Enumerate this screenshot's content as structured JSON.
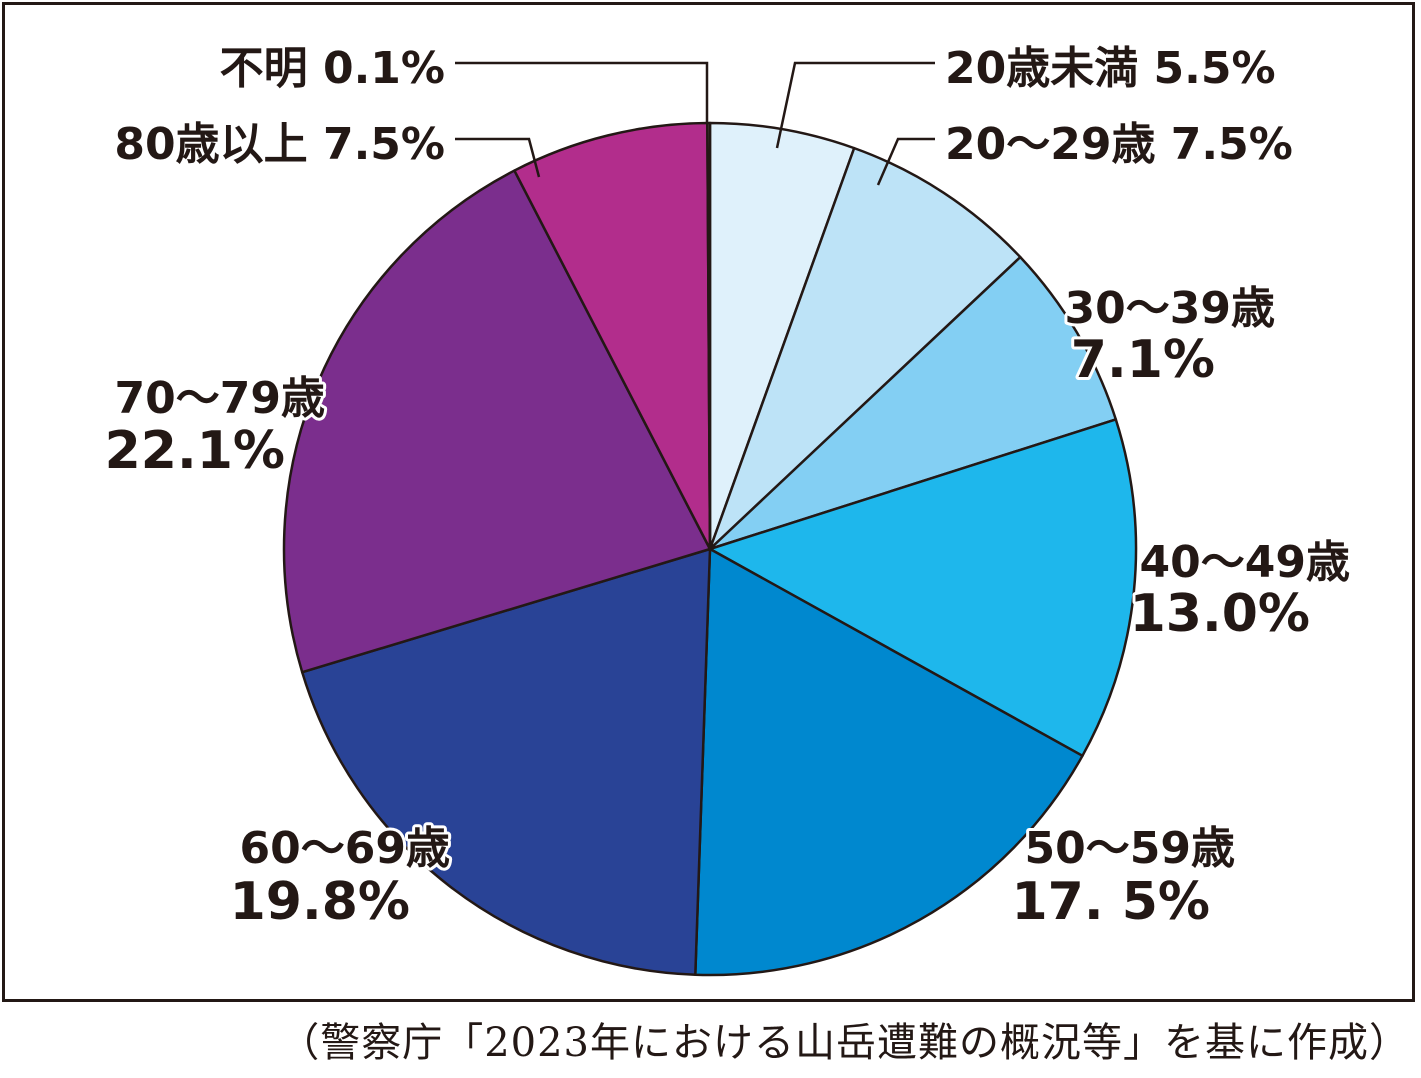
{
  "chart_data": {
    "type": "pie",
    "start_at": "12 o'clock",
    "direction": "clockwise",
    "slices": [
      {
        "label": "20歳未満",
        "value": 5.5,
        "value_label": "5.5%",
        "color": "#dff1fb"
      },
      {
        "label": "20～29歳",
        "value": 7.5,
        "value_label": "7.5%",
        "color": "#bde3f7"
      },
      {
        "label": "30～39歳",
        "value": 7.1,
        "value_label": "7.1%",
        "color": "#83cff3"
      },
      {
        "label": "40～49歳",
        "value": 13.0,
        "value_label": "13.0%",
        "color": "#1eb7ec"
      },
      {
        "label": "50～59歳",
        "value": 17.5,
        "value_label": "17. 5%",
        "color": "#0088cf"
      },
      {
        "label": "60～69歳",
        "value": 19.8,
        "value_label": "19.8%",
        "color": "#294396"
      },
      {
        "label": "70～79歳",
        "value": 22.1,
        "value_label": "22.1%",
        "color": "#7b2e8d"
      },
      {
        "label": "80歳以上",
        "value": 7.5,
        "value_label": "7.5%",
        "color": "#b22d8c"
      },
      {
        "label": "不明",
        "value": 0.1,
        "value_label": "0.1%",
        "color": "#a0a0a0"
      }
    ],
    "edge_color": "#231815"
  },
  "source_note": "（警察庁「2023年における山岳遭難の概況等」を基に作成）"
}
